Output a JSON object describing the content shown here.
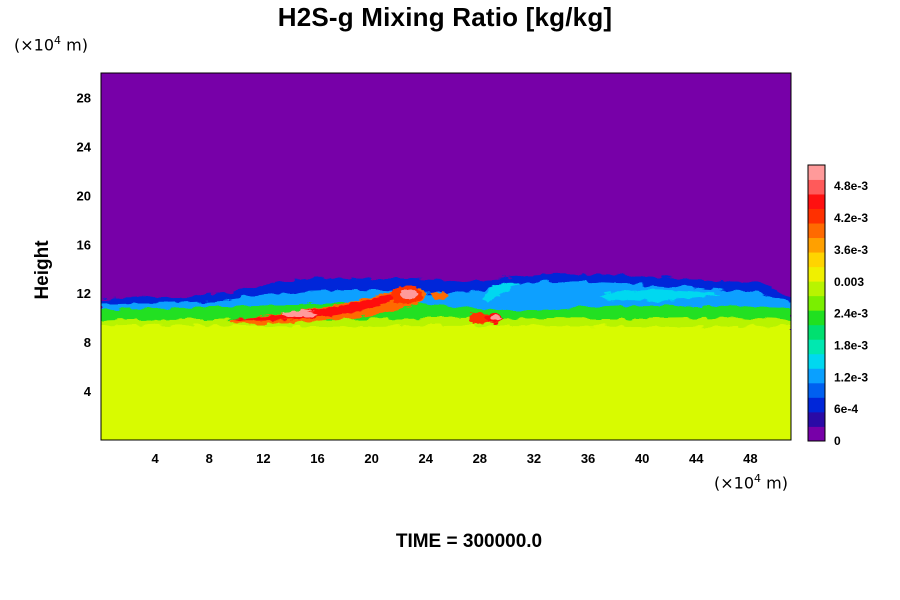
{
  "title": "H2S-g Mixing Ratio [kg/kg]",
  "y_unit_prefix": "(×10",
  "y_unit_exp": "4",
  "y_unit_suffix": " m)",
  "x_unit_prefix": "(×10",
  "x_unit_exp": "4",
  "x_unit_suffix": " m)",
  "ylabel": "Height",
  "time_label": "TIME = 300000.0",
  "colors": {
    "background_field": "#7700a8",
    "lower_field": "#d8fb00"
  },
  "chart_data": {
    "type": "heatmap",
    "title": "H2S-g Mixing Ratio [kg/kg]",
    "xlabel": "",
    "ylabel": "Height",
    "xlim": [
      0,
      51
    ],
    "ylim": [
      0,
      30
    ],
    "x_ticks": [
      4,
      8,
      12,
      16,
      20,
      24,
      28,
      32,
      36,
      40,
      44,
      48
    ],
    "y_ticks": [
      4,
      8,
      12,
      16,
      20,
      24,
      28
    ],
    "colorbar": {
      "min": 0,
      "max": 0.0052,
      "labels": [
        {
          "text": "4.8e-3",
          "value": 0.0048
        },
        {
          "text": "4.2e-3",
          "value": 0.0042
        },
        {
          "text": "3.6e-3",
          "value": 0.0036
        },
        {
          "text": "0.003",
          "value": 0.003
        },
        {
          "text": "2.4e-3",
          "value": 0.0024
        },
        {
          "text": "1.8e-3",
          "value": 0.0018
        },
        {
          "text": "1.2e-3",
          "value": 0.0012
        },
        {
          "text": "6e-4",
          "value": 0.0006
        },
        {
          "text": "0",
          "value": 0
        }
      ],
      "colors": [
        "#7700a8",
        "#2a0aa6",
        "#0026d9",
        "#0060f0",
        "#0aa0ff",
        "#00d8f0",
        "#00e8b0",
        "#00e070",
        "#20e020",
        "#7aef00",
        "#b8f400",
        "#f0f000",
        "#ffd400",
        "#ffa000",
        "#ff6a00",
        "#ff3000",
        "#ff1010",
        "#ff5a5a",
        "#ff9a9a"
      ]
    },
    "layers": [
      {
        "name": "uniform lower layer",
        "value": 0.0034,
        "y_range": [
          0,
          10
        ]
      },
      {
        "name": "upper layer",
        "value": 0,
        "y_range": [
          12.5,
          30
        ]
      },
      {
        "name": "plume",
        "value_max": 0.0052,
        "x_range": [
          10,
          30
        ],
        "y_range": [
          9.5,
          12.5
        ]
      }
    ]
  },
  "sample_point": {
    "x": 23,
    "y": 12
  }
}
